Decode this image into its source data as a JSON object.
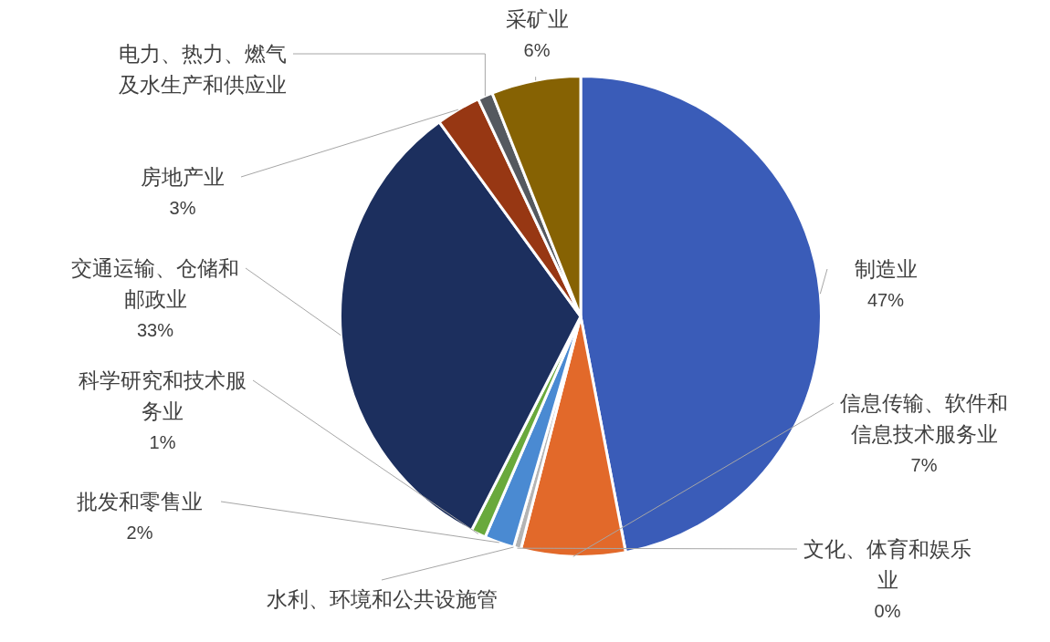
{
  "chart_data": {
    "type": "pie",
    "categories": [
      "制造业",
      "信息传输、软件和信息技术服务业",
      "文化、体育和娱乐业",
      "水利、环境和公共设施管",
      "批发和零售业",
      "科学研究和技术服务业",
      "交通运输、仓储和邮政业",
      "房地产业",
      "电力、热力、燃气及水生产和供应业",
      "采矿业"
    ],
    "values": [
      47,
      7,
      0.5,
      null,
      2,
      1,
      32.5,
      3,
      1,
      6
    ],
    "value_labels": [
      "47%",
      "7%",
      "0%",
      null,
      "2%",
      "1%",
      "33%",
      "3%",
      null,
      "6%"
    ],
    "colors": [
      "#3a5cb8",
      "#e2692a",
      "#b4b4b4",
      "#8fa8d0",
      "#4a8ad2",
      "#69a93c",
      "#1c2f5e",
      "#973713",
      "#55595f",
      "#866203"
    ]
  }
}
